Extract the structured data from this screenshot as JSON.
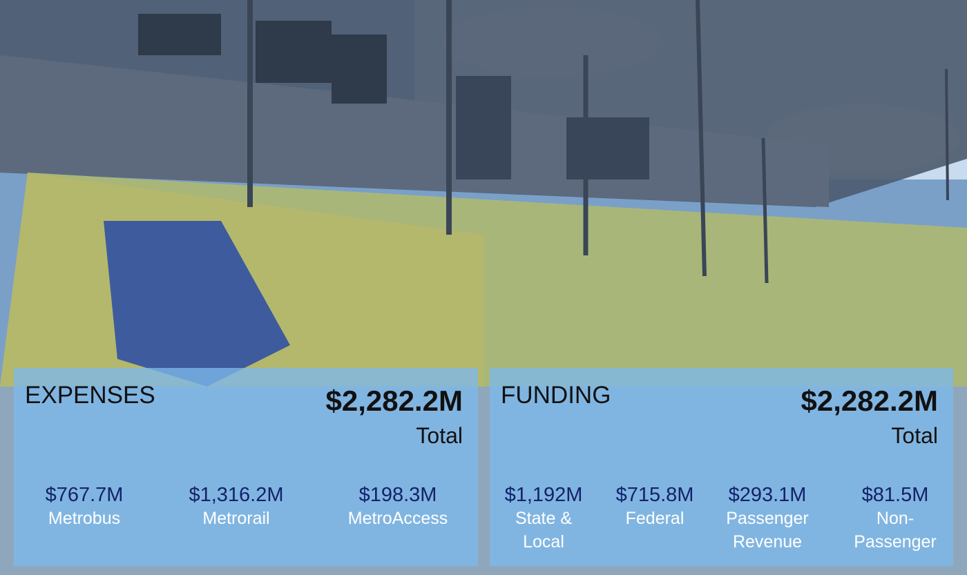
{
  "expenses": {
    "title": "EXPENSES",
    "total": "$2,282.2M",
    "total_label": "Total",
    "items": [
      {
        "value": "$767.7M",
        "label": "Metrobus"
      },
      {
        "value": "$1,316.2M",
        "label": "Metrorail"
      },
      {
        "value": "$198.3M",
        "label": "MetroAccess"
      }
    ]
  },
  "funding": {
    "title": "FUNDING",
    "total": "$2,282.2M",
    "total_label": "Total",
    "items": [
      {
        "value": "$1,192M",
        "label": "State & Local"
      },
      {
        "value": "$715.8M",
        "label": "Federal"
      },
      {
        "value": "$293.1M",
        "label": "Passenger Revenue"
      },
      {
        "value": "$81.5M",
        "label": "Non-Passenger"
      }
    ]
  }
}
